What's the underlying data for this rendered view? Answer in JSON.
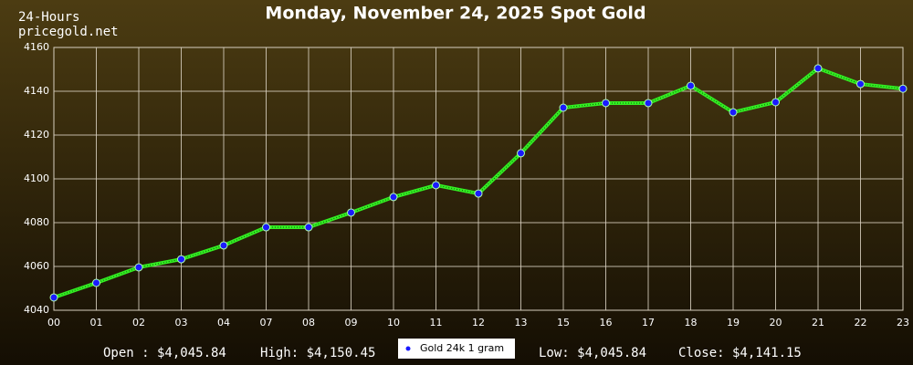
{
  "chart_data": {
    "type": "line",
    "title": "Monday, November 24, 2025 Spot Gold",
    "annotations": [
      "24-Hours",
      "pricegold.net"
    ],
    "stats": {
      "open": "Open : $4,045.84",
      "high": "High: $4,150.45",
      "low": "Low: $4,045.84",
      "close": "Close: $4,141.15"
    },
    "categories": [
      "00",
      "01",
      "02",
      "03",
      "04",
      "07",
      "08",
      "09",
      "10",
      "11",
      "12",
      "13",
      "15",
      "16",
      "17",
      "18",
      "19",
      "20",
      "21",
      "22",
      "23"
    ],
    "series": [
      {
        "name": "Gold 24k 1 gram",
        "color": "#33ee22",
        "marker_color": "#1a1aff",
        "values": [
          4045.84,
          4052.5,
          4059.6,
          4063.3,
          4069.6,
          4077.9,
          4077.9,
          4084.6,
          4091.7,
          4097.1,
          4093.3,
          4111.7,
          4132.5,
          4134.6,
          4134.6,
          4142.5,
          4130.4,
          4135,
          4150.45,
          4143.3,
          4141.15
        ]
      }
    ],
    "ylim": [
      4040,
      4160
    ],
    "yticks": [
      4040,
      4060,
      4080,
      4100,
      4120,
      4140,
      4160
    ],
    "grid": true
  }
}
